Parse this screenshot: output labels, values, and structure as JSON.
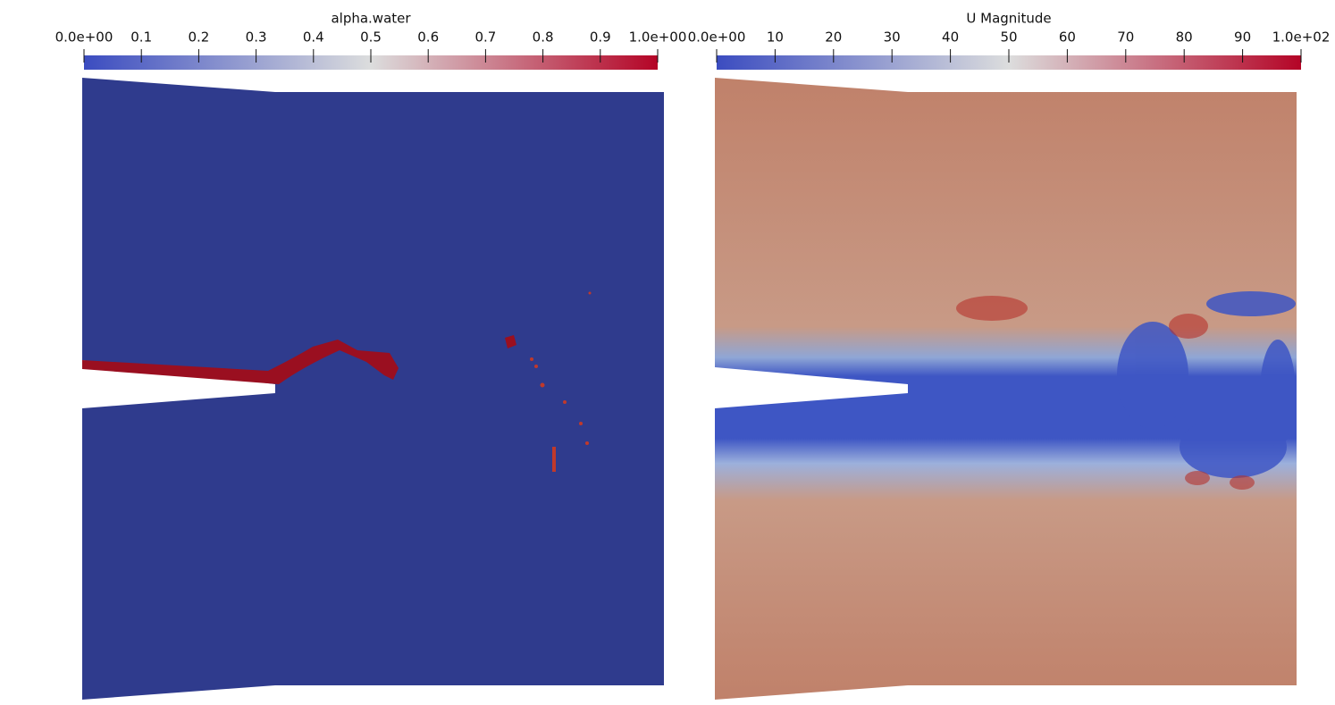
{
  "chart_data": [
    {
      "type": "colorbar",
      "title": "alpha.water",
      "xlim": [
        0,
        1
      ],
      "xticks": [
        {
          "value": 0,
          "label": "0.0e+00"
        },
        0.1,
        0.2,
        0.3,
        0.4,
        0.5,
        0.6,
        0.7,
        0.8,
        0.9,
        {
          "value": 1,
          "label": "1.0e+00"
        }
      ],
      "colormap": [
        "#3b4cc0",
        "#dcdddd",
        "#b40426"
      ]
    },
    {
      "type": "colorbar",
      "title": "U Magnitude",
      "xlim": [
        0,
        100
      ],
      "xticks": [
        {
          "value": 0,
          "label": "0.0e+00"
        },
        10,
        20,
        30,
        40,
        50,
        60,
        70,
        80,
        90,
        {
          "value": 100,
          "label": "1.0e+02"
        }
      ],
      "colormap": [
        "#3b4cc0",
        "#dcdddd",
        "#b40426"
      ]
    }
  ]
}
